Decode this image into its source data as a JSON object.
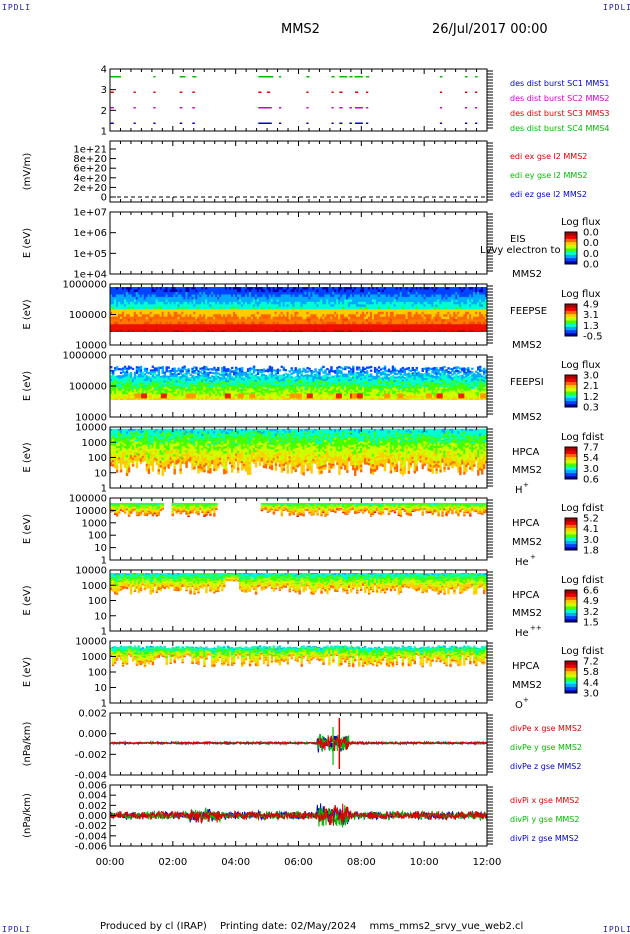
{
  "corner_labels": {
    "tl": "IPDLI",
    "tr": "IPDLI",
    "bl": "IPDLI",
    "br": "IPDLI"
  },
  "header": {
    "spacecraft": "MMS2",
    "date": "26/Jul/2017 00:00"
  },
  "footer": {
    "produced_by": "Produced by cl (IRAP)",
    "printing_date": "Printing date: 02/May/2024",
    "script": "mms_mms2_srvy_vue_web2.cl"
  },
  "colors": {
    "red": "#dd0000",
    "green": "#00bb00",
    "blue": "#0000cc",
    "magenta": "#cc00cc",
    "colorbar": [
      "#0000aa",
      "#0044ff",
      "#00aaff",
      "#00ffcc",
      "#44ff00",
      "#ccff00",
      "#ffcc00",
      "#ff6600",
      "#ee0000",
      "#aa0000"
    ]
  },
  "chart_data": [
    {
      "id": "burst",
      "type": "scatter",
      "ylim": [
        0.5,
        4.5
      ],
      "yticks": [
        "1",
        "2",
        "3",
        "4"
      ],
      "ylabel": "",
      "legend": [
        {
          "text": "des dist burst SC1 MMS1",
          "color": "#0000cc"
        },
        {
          "text": "des dist burst SC2 MMS2",
          "color": "#cc00cc"
        },
        {
          "text": "des dist burst SC3 MMS3",
          "color": "#dd0000"
        },
        {
          "text": "des dist burst SC4 MMS4",
          "color": "#00bb00"
        }
      ],
      "series": [
        {
          "level": 4,
          "color": "#00bb00",
          "intervals": [
            [
              0.02,
              0.35
            ],
            [
              1.38,
              1.45
            ],
            [
              2.22,
              2.4
            ],
            [
              2.62,
              2.75
            ],
            [
              4.72,
              5.2
            ],
            [
              5.38,
              5.45
            ],
            [
              6.25,
              6.35
            ],
            [
              7.05,
              7.15
            ],
            [
              7.3,
              7.55
            ],
            [
              7.62,
              7.72
            ],
            [
              7.78,
              8.05
            ],
            [
              8.15,
              8.25
            ],
            [
              10.5,
              10.58
            ],
            [
              11.3,
              11.38
            ],
            [
              11.62,
              11.7
            ]
          ]
        },
        {
          "level": 3,
          "color": "#dd0000",
          "intervals": [
            [
              0.02,
              0.12
            ],
            [
              0.75,
              0.82
            ],
            [
              1.38,
              1.45
            ],
            [
              2.22,
              2.3
            ],
            [
              2.62,
              2.7
            ],
            [
              4.72,
              4.82
            ],
            [
              5.0,
              5.1
            ],
            [
              6.25,
              6.32
            ],
            [
              7.05,
              7.12
            ],
            [
              7.3,
              7.4
            ],
            [
              7.8,
              7.9
            ],
            [
              8.15,
              8.22
            ],
            [
              10.5,
              10.57
            ],
            [
              11.3,
              11.37
            ],
            [
              11.62,
              11.69
            ]
          ]
        },
        {
          "level": 2,
          "color": "#cc00cc",
          "intervals": [
            [
              0.02,
              0.12
            ],
            [
              0.75,
              0.82
            ],
            [
              1.38,
              1.45
            ],
            [
              2.22,
              2.3
            ],
            [
              2.62,
              2.7
            ],
            [
              4.72,
              5.15
            ],
            [
              5.38,
              5.45
            ],
            [
              6.25,
              6.32
            ],
            [
              7.05,
              7.12
            ],
            [
              7.3,
              7.4
            ],
            [
              7.62,
              7.7
            ],
            [
              7.8,
              8.05
            ],
            [
              8.15,
              8.22
            ],
            [
              10.5,
              10.57
            ],
            [
              11.3,
              11.37
            ],
            [
              11.62,
              11.69
            ]
          ]
        },
        {
          "level": 1,
          "color": "#0000cc",
          "intervals": [
            [
              0.02,
              0.12
            ],
            [
              0.75,
              0.82
            ],
            [
              1.38,
              1.45
            ],
            [
              2.22,
              2.3
            ],
            [
              2.62,
              2.7
            ],
            [
              4.72,
              5.15
            ],
            [
              5.38,
              5.45
            ],
            [
              6.25,
              6.32
            ],
            [
              7.05,
              7.12
            ],
            [
              7.3,
              7.4
            ],
            [
              7.62,
              7.7
            ],
            [
              7.8,
              8.05
            ],
            [
              8.15,
              8.22
            ],
            [
              10.5,
              10.57
            ],
            [
              11.3,
              11.37
            ],
            [
              11.62,
              11.69
            ]
          ]
        }
      ]
    },
    {
      "id": "edi",
      "type": "line",
      "ylabel": "(mV/m)",
      "ylim": [
        -1e+20,
        1e+21
      ],
      "yticks": [
        "0",
        "2e+20",
        "4e+20",
        "6e+20",
        "8e+20",
        "1e+21"
      ],
      "legend": [
        {
          "text": "edi ex gse l2 MMS2",
          "color": "#dd0000"
        },
        {
          "text": "edi ey gse l2 MMS2",
          "color": "#00bb00"
        },
        {
          "text": "edi ez gse l2 MMS2",
          "color": "#0000cc"
        }
      ]
    },
    {
      "id": "eis",
      "type": "heatmap",
      "ylabel": "E (eV)",
      "scale": "log",
      "ylim": [
        10000,
        10000000
      ],
      "yticks": [
        "1e+04",
        "1e+05",
        "1e+06",
        "1e+07"
      ],
      "instrument": "EIS",
      "product": "Lvvy electron to",
      "spacecraft": "MMS2",
      "colorbar": {
        "title": "Log flux",
        "ticks": [
          "0.0",
          "0.0",
          "0.0",
          "0.0"
        ]
      }
    },
    {
      "id": "feepse",
      "type": "heatmap",
      "ylabel": "E (eV)",
      "scale": "log",
      "ylim": [
        10000,
        1000000
      ],
      "yticks": [
        "10000",
        "100000",
        "1000000"
      ],
      "instrument": "FEEPSE",
      "spacecraft": "MMS2",
      "colorbar": {
        "title": "Log flux",
        "ticks": [
          "4.9",
          "3.1",
          "1.3",
          "-0.5"
        ]
      }
    },
    {
      "id": "feepsi",
      "type": "heatmap",
      "ylabel": "E (eV)",
      "scale": "log",
      "ylim": [
        10000,
        1000000
      ],
      "yticks": [
        "10000",
        "100000",
        "1000000"
      ],
      "instrument": "FEEPSI",
      "spacecraft": "MMS2",
      "colorbar": {
        "title": "Log flux",
        "ticks": [
          "3.0",
          "2.1",
          "1.2",
          "0.3"
        ]
      }
    },
    {
      "id": "hpca_h",
      "type": "heatmap",
      "ylabel": "E (eV)",
      "scale": "log",
      "ylim": [
        1,
        10000
      ],
      "yticks": [
        "1",
        "10",
        "100",
        "1000",
        "10000"
      ],
      "instrument": "HPCA",
      "spacecraft": "MMS2",
      "species": "H",
      "charge": "+",
      "colorbar": {
        "title": "Log fdist",
        "ticks": [
          "7.7",
          "5.4",
          "3.0",
          "0.6"
        ]
      }
    },
    {
      "id": "hpca_he1",
      "type": "heatmap",
      "ylabel": "E (eV)",
      "scale": "log",
      "ylim": [
        1,
        100000
      ],
      "yticks": [
        "1",
        "10",
        "100",
        "1000",
        "10000",
        "100000"
      ],
      "instrument": "HPCA",
      "spacecraft": "MMS2",
      "species": "He",
      "charge": "+",
      "colorbar": {
        "title": "Log fdist",
        "ticks": [
          "5.2",
          "4.1",
          "3.0",
          "1.8"
        ]
      }
    },
    {
      "id": "hpca_he2",
      "type": "heatmap",
      "ylabel": "E (eV)",
      "scale": "log",
      "ylim": [
        1,
        10000
      ],
      "yticks": [
        "1",
        "10",
        "100",
        "1000",
        "10000"
      ],
      "instrument": "HPCA",
      "spacecraft": "MMS2",
      "species": "He",
      "charge": "++",
      "colorbar": {
        "title": "Log fdist",
        "ticks": [
          "6.6",
          "4.9",
          "3.2",
          "1.5"
        ]
      }
    },
    {
      "id": "hpca_o",
      "type": "heatmap",
      "ylabel": "E (eV)",
      "scale": "log",
      "ylim": [
        1,
        10000
      ],
      "yticks": [
        "1",
        "10",
        "100",
        "1000",
        "10000"
      ],
      "instrument": "HPCA",
      "spacecraft": "MMS2",
      "species": "O",
      "charge": "+",
      "colorbar": {
        "title": "Log fdist",
        "ticks": [
          "7.2",
          "5.8",
          "4.4",
          "3.0"
        ]
      }
    },
    {
      "id": "divpe",
      "type": "line",
      "ylabel": "(nPa/km)",
      "ylim": [
        -0.004,
        0.004
      ],
      "yticks": [
        "-0.004",
        "-0.002",
        "0.000",
        "0.002"
      ],
      "legend": [
        {
          "text": "divPe x gse MMS2",
          "color": "#dd0000"
        },
        {
          "text": "divPe y gse MMS2",
          "color": "#00bb00"
        },
        {
          "text": "divPe z gse MMS2",
          "color": "#0000cc"
        }
      ]
    },
    {
      "id": "divpi",
      "type": "line",
      "ylabel": "(nPa/km)",
      "ylim": [
        -0.0065,
        0.0065
      ],
      "yticks": [
        "-0.006",
        "-0.004",
        "-0.002",
        "0.000",
        "0.002",
        "0.004",
        "0.006"
      ],
      "legend": [
        {
          "text": "divPi x gse MMS2",
          "color": "#dd0000"
        },
        {
          "text": "divPi y gse MMS2",
          "color": "#00bb00"
        },
        {
          "text": "divPi z gse MMS2",
          "color": "#0000cc"
        }
      ]
    }
  ],
  "time_axis": {
    "range_hours": [
      0,
      12
    ],
    "tick_labels": [
      "00:00",
      "02:00",
      "04:00",
      "06:00",
      "08:00",
      "10:00",
      "12:00"
    ]
  }
}
